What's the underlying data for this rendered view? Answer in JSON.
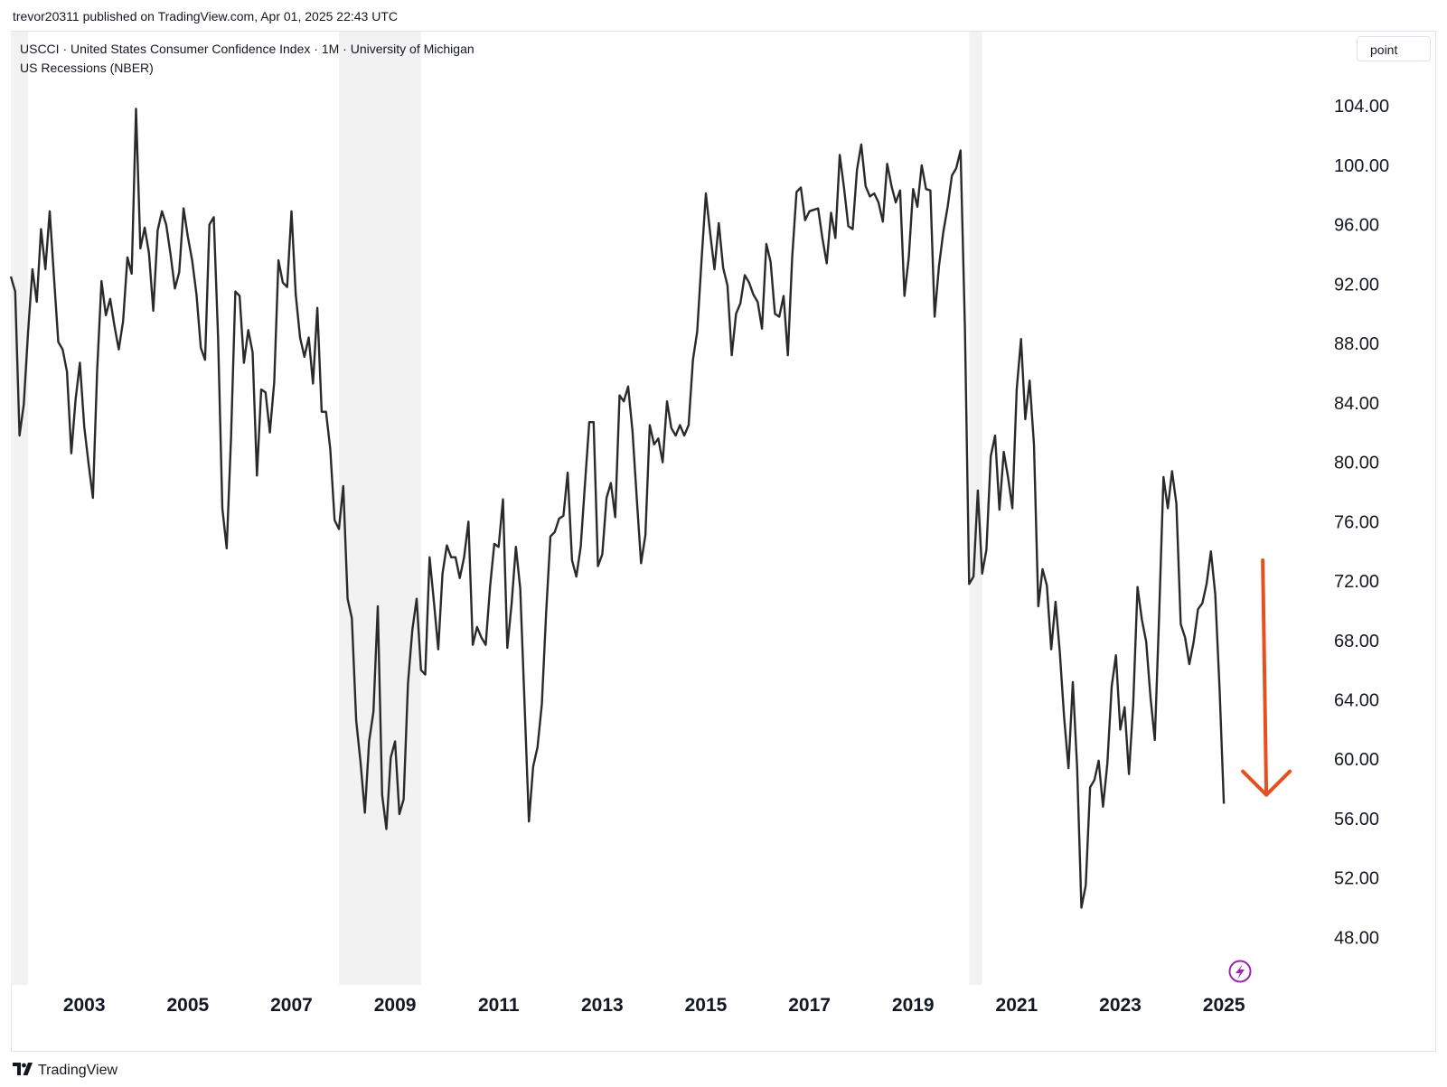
{
  "header": {
    "publish_line": "trevor20311 published on TradingView.com, Apr 01, 2025 22:43 UTC"
  },
  "legend": {
    "series_title": "USCCI · United States Consumer Confidence Index · 1M · University of Michigan",
    "overlay_title": "US Recessions (NBER)"
  },
  "scale_badge": "point",
  "footer": {
    "brand": "TradingView"
  },
  "colors": {
    "line": "#2a2a2a",
    "recession_shade": "#f2f2f2",
    "arrow": "#e5501c",
    "bolt": "#9c27b0"
  },
  "icons": {
    "footer_logo": "tradingview-logo-icon",
    "flash": "lightning-bolt-icon",
    "annotation": "down-arrow-icon"
  },
  "chart_data": {
    "type": "line",
    "title": "USCCI · United States Consumer Confidence Index · 1M · University of Michigan",
    "x_ticks": [
      "2003",
      "2005",
      "2007",
      "2009",
      "2011",
      "2013",
      "2015",
      "2017",
      "2019",
      "2021",
      "2023",
      "2025"
    ],
    "y_ticks": [
      "104.00",
      "100.00",
      "96.00",
      "92.00",
      "88.00",
      "84.00",
      "80.00",
      "76.00",
      "72.00",
      "68.00",
      "64.00",
      "60.00",
      "56.00",
      "52.00",
      "48.00"
    ],
    "ylim": [
      44.8,
      109.0
    ],
    "xlim": [
      "2001-08",
      "2026-12"
    ],
    "recessions": [
      {
        "start": "2001-08",
        "end": "2001-11"
      },
      {
        "start": "2007-12",
        "end": "2009-06"
      },
      {
        "start": "2020-02",
        "end": "2020-04"
      }
    ],
    "annotation": {
      "type": "arrow",
      "direction": "down",
      "from": [
        "2025-10",
        73.4
      ],
      "to": [
        "2025-10",
        57.6
      ]
    },
    "series": [
      {
        "start": "2001-08",
        "values": [
          92.5,
          91.5,
          81.8,
          83.9,
          88.8,
          93.0,
          90.8,
          95.7,
          93.0,
          96.9,
          92.4,
          88.1,
          87.6,
          86.1,
          80.6,
          84.2,
          86.7,
          82.4,
          79.9,
          77.6,
          86.2,
          92.2,
          89.9,
          91.0,
          89.2,
          87.6,
          89.5,
          93.8,
          92.7,
          103.8,
          94.4,
          95.8,
          94.1,
          90.2,
          95.6,
          96.9,
          96.0,
          94.0,
          91.7,
          92.8,
          97.1,
          95.2,
          93.6,
          91.3,
          87.7,
          86.9,
          96.0,
          96.5,
          88.4,
          76.9,
          74.2,
          81.6,
          91.5,
          91.2,
          86.7,
          88.9,
          87.4,
          79.1,
          84.9,
          84.7,
          82.0,
          85.4,
          93.6,
          92.1,
          91.8,
          96.9,
          91.3,
          88.4,
          87.1,
          88.4,
          85.3,
          90.4,
          83.4,
          83.4,
          80.9,
          76.1,
          75.5,
          78.4,
          70.8,
          69.5,
          62.6,
          59.8,
          56.4,
          61.2,
          63.2,
          70.3,
          57.6,
          55.3,
          60.1,
          61.2,
          56.3,
          57.3,
          65.1,
          68.7,
          70.8,
          66.0,
          65.7,
          73.6,
          70.6,
          67.4,
          72.5,
          74.4,
          73.6,
          73.6,
          72.2,
          73.6,
          76.0,
          67.7,
          68.9,
          68.2,
          67.7,
          71.6,
          74.5,
          74.3,
          77.5,
          67.5,
          70.5,
          74.3,
          71.5,
          63.7,
          55.8,
          59.5,
          60.8,
          63.7,
          69.9,
          75.0,
          75.3,
          76.2,
          76.4,
          79.3,
          73.4,
          72.3,
          74.3,
          78.6,
          82.7,
          82.7,
          73.0,
          73.8,
          77.6,
          78.6,
          76.3,
          84.5,
          84.1,
          85.1,
          82.1,
          77.5,
          73.2,
          75.1,
          82.5,
          81.2,
          81.6,
          80.0,
          84.1,
          82.3,
          81.8,
          82.5,
          81.8,
          82.5,
          86.9,
          88.8,
          93.6,
          98.1,
          95.4,
          93.0,
          96.1,
          93.1,
          91.9,
          87.2,
          90.0,
          90.7,
          92.6,
          92.1,
          91.3,
          90.8,
          89.0,
          94.7,
          93.5,
          90.0,
          89.8,
          91.2,
          87.2,
          93.8,
          98.2,
          98.5,
          96.3,
          96.9,
          97.0,
          97.1,
          95.1,
          93.4,
          96.8,
          95.1,
          100.7,
          98.5,
          95.9,
          95.7,
          99.7,
          101.4,
          98.6,
          97.9,
          98.1,
          97.5,
          96.2,
          100.1,
          98.6,
          97.5,
          98.3,
          91.2,
          93.8,
          98.4,
          97.2,
          100.0,
          98.4,
          98.3,
          89.8,
          93.2,
          95.5,
          97.2,
          99.3,
          99.8,
          101.0,
          89.1,
          71.8,
          72.3,
          78.1,
          72.5,
          74.1,
          80.4,
          81.8,
          76.8,
          80.7,
          79.0,
          76.9,
          84.9,
          88.3,
          82.9,
          85.5,
          81.2,
          70.3,
          72.8,
          71.7,
          67.4,
          70.6,
          67.2,
          62.8,
          59.4,
          65.2,
          59.4,
          50.0,
          51.5,
          58.1,
          58.6,
          59.9,
          56.8,
          59.7,
          64.9,
          67.0,
          62.0,
          63.5,
          59.0,
          63.7,
          71.6,
          69.4,
          67.9,
          64.2,
          61.3,
          69.7,
          79.0,
          76.9,
          79.4,
          77.2,
          69.1,
          68.2,
          66.4,
          67.9,
          70.1,
          70.5,
          71.8,
          74.0,
          71.1,
          64.7,
          57.0
        ]
      }
    ]
  }
}
